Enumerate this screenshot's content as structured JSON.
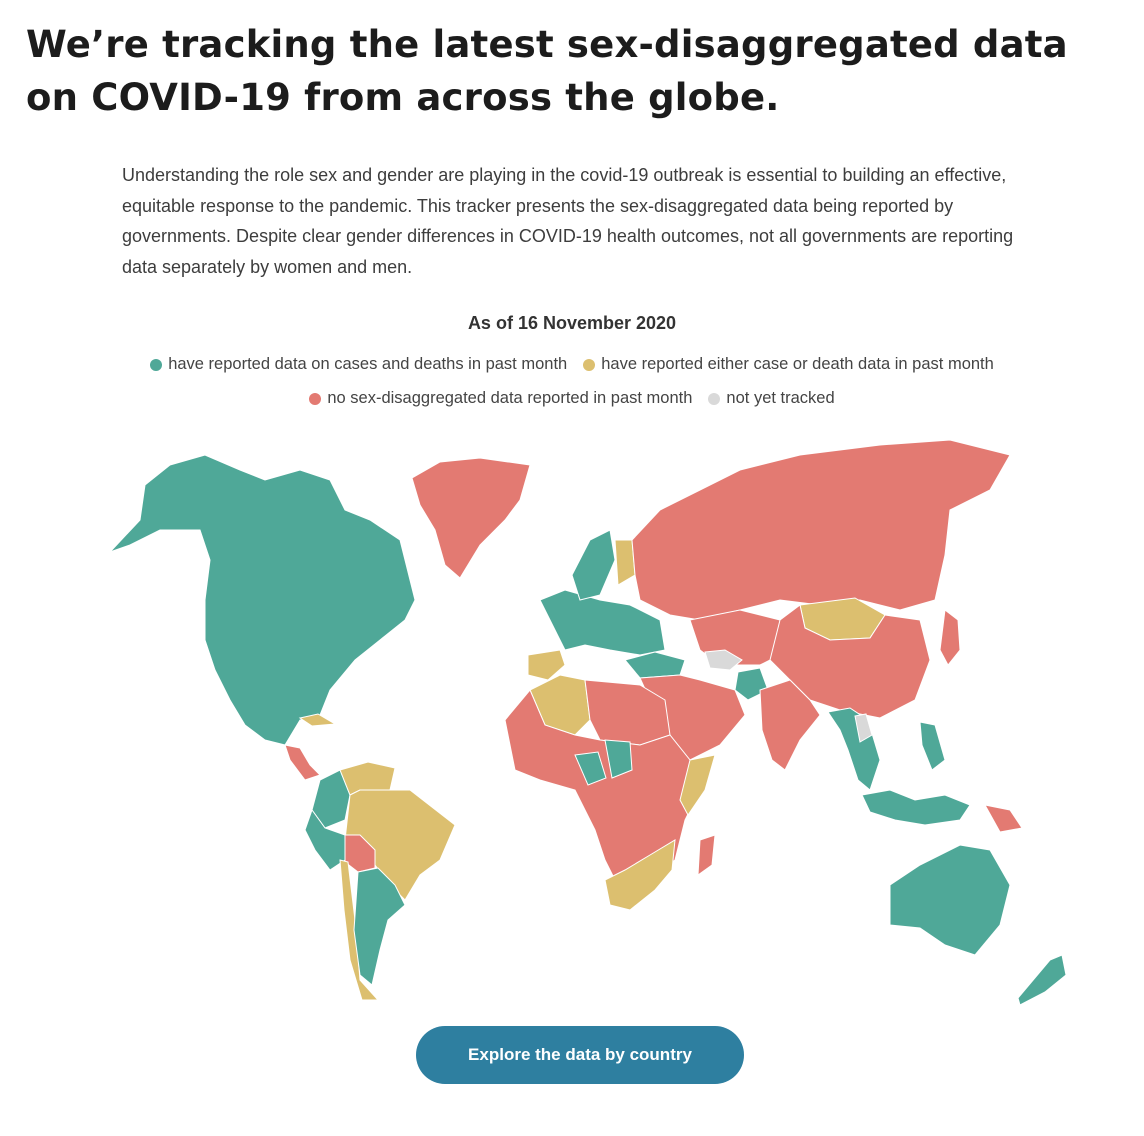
{
  "headline": "We’re tracking the latest sex-disaggregated data on COVID-19 from across the globe.",
  "intro": "Understanding the role sex and gender are playing in the covid-19 outbreak is essential to building an effective, equitable response to the pandemic. This tracker presents the sex-disaggregated data being reported by governments. Despite clear gender differences in COVID-19 health outcomes, not all governments are reporting data separately by women and men.",
  "map": {
    "as_of": "As of 16 November 2020",
    "colors": {
      "both": "#4fa898",
      "either": "#dcbf6f",
      "none": "#e37a72",
      "untracked": "#d9d9d9"
    },
    "legend": [
      {
        "key": "both",
        "label": "have reported data on cases and deaths in past month"
      },
      {
        "key": "either",
        "label": "have reported either case or death data in past month"
      },
      {
        "key": "none",
        "label": "no sex-disaggregated data reported in past month"
      },
      {
        "key": "untracked",
        "label": "not yet tracked"
      }
    ],
    "regions": [
      {
        "id": "north-america",
        "status": "both"
      },
      {
        "id": "greenland",
        "status": "none"
      },
      {
        "id": "cuba",
        "status": "either"
      },
      {
        "id": "central-america",
        "status": "none"
      },
      {
        "id": "colombia",
        "status": "both"
      },
      {
        "id": "venezuela",
        "status": "either"
      },
      {
        "id": "brazil",
        "status": "either"
      },
      {
        "id": "peru",
        "status": "both"
      },
      {
        "id": "bolivia",
        "status": "none"
      },
      {
        "id": "chile",
        "status": "either"
      },
      {
        "id": "argentina",
        "status": "both"
      },
      {
        "id": "spain",
        "status": "either"
      },
      {
        "id": "western-europe",
        "status": "both"
      },
      {
        "id": "sweden-norway",
        "status": "both"
      },
      {
        "id": "finland",
        "status": "either"
      },
      {
        "id": "russia",
        "status": "none"
      },
      {
        "id": "turkey",
        "status": "both"
      },
      {
        "id": "algeria",
        "status": "either"
      },
      {
        "id": "north-africa",
        "status": "none"
      },
      {
        "id": "sub-saharan-africa",
        "status": "none"
      },
      {
        "id": "chad",
        "status": "both"
      },
      {
        "id": "drc",
        "status": "both"
      },
      {
        "id": "somalia",
        "status": "either"
      },
      {
        "id": "southern-africa",
        "status": "either"
      },
      {
        "id": "madagascar",
        "status": "none"
      },
      {
        "id": "middle-east",
        "status": "none"
      },
      {
        "id": "central-asia",
        "status": "none"
      },
      {
        "id": "turkmenistan",
        "status": "untracked"
      },
      {
        "id": "afghanistan",
        "status": "both"
      },
      {
        "id": "mongolia",
        "status": "either"
      },
      {
        "id": "china",
        "status": "none"
      },
      {
        "id": "india",
        "status": "none"
      },
      {
        "id": "southeast-asia",
        "status": "both"
      },
      {
        "id": "laos",
        "status": "untracked"
      },
      {
        "id": "japan",
        "status": "none"
      },
      {
        "id": "philippines",
        "status": "both"
      },
      {
        "id": "indonesia",
        "status": "both"
      },
      {
        "id": "papua-new-guinea",
        "status": "none"
      },
      {
        "id": "australia",
        "status": "both"
      },
      {
        "id": "new-zealand",
        "status": "both"
      }
    ]
  },
  "cta_label": "Explore the data by country"
}
